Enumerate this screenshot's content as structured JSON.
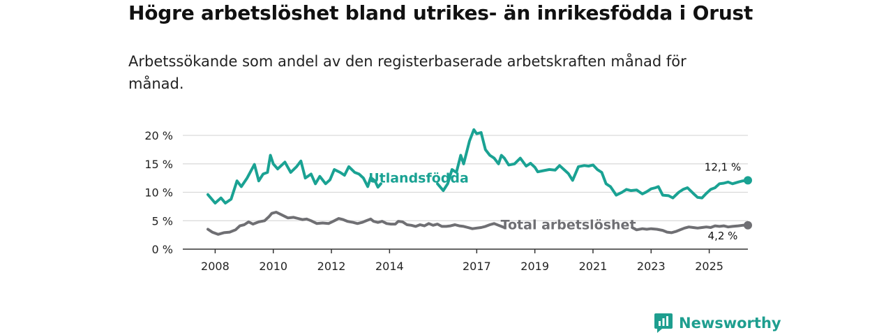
{
  "title": "Högre arbetslöshet bland utrikes- än inrikesfödda i Orust",
  "subtitle": "Arbetssökande som andel av den registerbaserade arbetskraften månad för månad.",
  "brand": "Newsworthy",
  "colors": {
    "foreign": "#1aa293",
    "total": "#6f6f73",
    "grid": "#d9d9d9",
    "axis": "#333333",
    "brand": "#1e9e8f"
  },
  "chart_data": {
    "type": "line",
    "title": "Högre arbetslöshet bland utrikes- än inrikesfödda i Orust",
    "ylabel": "",
    "xlabel": "",
    "ylim": [
      0,
      20
    ],
    "xlim": [
      2007.75,
      2026.33
    ],
    "y_ticks": [
      0,
      5,
      10,
      15,
      20
    ],
    "y_tick_labels": [
      "0 %",
      "5 %",
      "10 %",
      "15 %",
      "20 %"
    ],
    "x_ticks": [
      2008,
      2010,
      2012,
      2014,
      2017,
      2019,
      2021,
      2023,
      2025
    ],
    "x_tick_labels": [
      "2008",
      "2010",
      "2012",
      "2014",
      "2017",
      "2019",
      "2021",
      "2023",
      "2025"
    ],
    "grid": true,
    "series": [
      {
        "name": "Utlandsfödda",
        "end_label": "12,1 %",
        "points": [
          [
            2007.75,
            9.6
          ],
          [
            2008.0,
            8.1
          ],
          [
            2008.2,
            9.0
          ],
          [
            2008.35,
            8.1
          ],
          [
            2008.55,
            8.8
          ],
          [
            2008.75,
            12.0
          ],
          [
            2008.9,
            11.0
          ],
          [
            2009.1,
            12.5
          ],
          [
            2009.35,
            14.9
          ],
          [
            2009.5,
            12.0
          ],
          [
            2009.65,
            13.2
          ],
          [
            2009.8,
            13.5
          ],
          [
            2009.9,
            16.5
          ],
          [
            2010.0,
            15.0
          ],
          [
            2010.15,
            14.1
          ],
          [
            2010.4,
            15.3
          ],
          [
            2010.6,
            13.5
          ],
          [
            2010.8,
            14.5
          ],
          [
            2010.95,
            15.5
          ],
          [
            2011.1,
            12.5
          ],
          [
            2011.3,
            13.2
          ],
          [
            2011.45,
            11.5
          ],
          [
            2011.6,
            12.8
          ],
          [
            2011.8,
            11.5
          ],
          [
            2011.95,
            12.2
          ],
          [
            2012.1,
            14.0
          ],
          [
            2012.3,
            13.5
          ],
          [
            2012.45,
            13.0
          ],
          [
            2012.6,
            14.5
          ],
          [
            2012.8,
            13.5
          ],
          [
            2012.95,
            13.2
          ],
          [
            2013.1,
            12.5
          ],
          [
            2013.25,
            11.0
          ],
          [
            2013.35,
            12.6
          ],
          [
            2013.5,
            12.0
          ],
          [
            2013.6,
            10.9
          ],
          [
            2013.7,
            11.5
          ]
        ],
        "points_b": [
          [
            2015.65,
            11.5
          ],
          [
            2015.85,
            10.3
          ],
          [
            2016.0,
            11.5
          ],
          [
            2016.15,
            14.0
          ],
          [
            2016.3,
            13.5
          ],
          [
            2016.45,
            16.5
          ],
          [
            2016.55,
            15.0
          ],
          [
            2016.75,
            19.0
          ],
          [
            2016.9,
            21.0
          ],
          [
            2017.0,
            20.3
          ],
          [
            2017.15,
            20.5
          ],
          [
            2017.3,
            17.5
          ],
          [
            2017.45,
            16.5
          ],
          [
            2017.6,
            16.0
          ],
          [
            2017.75,
            15.0
          ],
          [
            2017.85,
            16.5
          ],
          [
            2017.95,
            16.0
          ],
          [
            2018.1,
            14.8
          ],
          [
            2018.3,
            15.0
          ],
          [
            2018.5,
            16.0
          ],
          [
            2018.7,
            14.6
          ],
          [
            2018.85,
            15.1
          ],
          [
            2019.0,
            14.4
          ],
          [
            2019.1,
            13.6
          ],
          [
            2019.3,
            13.8
          ],
          [
            2019.5,
            14.0
          ],
          [
            2019.7,
            13.9
          ],
          [
            2019.85,
            14.7
          ],
          [
            2020.0,
            14.0
          ],
          [
            2020.15,
            13.3
          ],
          [
            2020.3,
            12.1
          ],
          [
            2020.5,
            14.5
          ],
          [
            2020.7,
            14.7
          ],
          [
            2020.85,
            14.6
          ],
          [
            2021.0,
            14.8
          ],
          [
            2021.15,
            14.0
          ],
          [
            2021.3,
            13.5
          ],
          [
            2021.45,
            11.5
          ],
          [
            2021.6,
            11.0
          ],
          [
            2021.8,
            9.5
          ],
          [
            2022.0,
            10.0
          ],
          [
            2022.15,
            10.5
          ],
          [
            2022.3,
            10.3
          ],
          [
            2022.5,
            10.4
          ],
          [
            2022.7,
            9.7
          ],
          [
            2022.85,
            10.1
          ],
          [
            2023.0,
            10.6
          ],
          [
            2023.15,
            10.8
          ],
          [
            2023.25,
            11.0
          ],
          [
            2023.4,
            9.5
          ],
          [
            2023.6,
            9.4
          ],
          [
            2023.75,
            9.0
          ],
          [
            2023.95,
            10.0
          ],
          [
            2024.1,
            10.5
          ],
          [
            2024.25,
            10.8
          ],
          [
            2024.45,
            9.8
          ],
          [
            2024.6,
            9.1
          ],
          [
            2024.75,
            9.0
          ],
          [
            2024.9,
            9.8
          ],
          [
            2025.05,
            10.5
          ],
          [
            2025.2,
            10.8
          ],
          [
            2025.35,
            11.5
          ],
          [
            2025.5,
            11.6
          ],
          [
            2025.65,
            11.8
          ],
          [
            2025.8,
            11.5
          ],
          [
            2026.0,
            11.8
          ],
          [
            2026.15,
            12.0
          ],
          [
            2026.33,
            12.1
          ]
        ]
      },
      {
        "name": "Total arbetslöshet",
        "end_label": "4,2 %",
        "points": [
          [
            2007.75,
            3.5
          ],
          [
            2007.9,
            3.0
          ],
          [
            2008.1,
            2.6
          ],
          [
            2008.3,
            2.9
          ],
          [
            2008.5,
            3.0
          ],
          [
            2008.7,
            3.4
          ],
          [
            2008.85,
            4.1
          ],
          [
            2009.0,
            4.3
          ],
          [
            2009.15,
            4.8
          ],
          [
            2009.3,
            4.4
          ],
          [
            2009.5,
            4.8
          ],
          [
            2009.7,
            5.0
          ],
          [
            2009.85,
            5.7
          ],
          [
            2009.95,
            6.3
          ],
          [
            2010.1,
            6.5
          ],
          [
            2010.3,
            6.0
          ],
          [
            2010.5,
            5.5
          ],
          [
            2010.7,
            5.6
          ],
          [
            2010.85,
            5.4
          ],
          [
            2011.0,
            5.2
          ],
          [
            2011.15,
            5.3
          ],
          [
            2011.3,
            5.0
          ],
          [
            2011.5,
            4.5
          ],
          [
            2011.7,
            4.6
          ],
          [
            2011.9,
            4.5
          ],
          [
            2012.1,
            5.0
          ],
          [
            2012.25,
            5.4
          ],
          [
            2012.4,
            5.2
          ],
          [
            2012.55,
            4.9
          ],
          [
            2012.75,
            4.7
          ],
          [
            2012.9,
            4.5
          ],
          [
            2013.05,
            4.7
          ],
          [
            2013.2,
            5.0
          ],
          [
            2013.35,
            5.3
          ],
          [
            2013.45,
            4.9
          ],
          [
            2013.6,
            4.7
          ],
          [
            2013.75,
            4.9
          ],
          [
            2013.9,
            4.5
          ],
          [
            2014.05,
            4.4
          ],
          [
            2014.2,
            4.4
          ],
          [
            2014.3,
            4.9
          ],
          [
            2014.45,
            4.8
          ],
          [
            2014.6,
            4.3
          ],
          [
            2014.75,
            4.2
          ],
          [
            2014.9,
            4.0
          ],
          [
            2015.05,
            4.3
          ],
          [
            2015.2,
            4.1
          ],
          [
            2015.35,
            4.5
          ],
          [
            2015.5,
            4.2
          ],
          [
            2015.65,
            4.4
          ],
          [
            2015.8,
            4.0
          ],
          [
            2015.95,
            4.0
          ],
          [
            2016.1,
            4.1
          ],
          [
            2016.25,
            4.3
          ],
          [
            2016.4,
            4.1
          ],
          [
            2016.55,
            4.0
          ],
          [
            2016.7,
            3.8
          ],
          [
            2016.85,
            3.6
          ],
          [
            2017.0,
            3.7
          ],
          [
            2017.15,
            3.8
          ],
          [
            2017.3,
            4.0
          ],
          [
            2017.45,
            4.3
          ],
          [
            2017.6,
            4.5
          ],
          [
            2017.75,
            4.2
          ],
          [
            2017.85,
            4.0
          ],
          [
            2017.95,
            3.8
          ]
        ],
        "points_b": [
          [
            2022.35,
            3.8
          ],
          [
            2022.5,
            3.4
          ],
          [
            2022.7,
            3.6
          ],
          [
            2022.85,
            3.5
          ],
          [
            2023.0,
            3.6
          ],
          [
            2023.2,
            3.5
          ],
          [
            2023.4,
            3.3
          ],
          [
            2023.55,
            3.0
          ],
          [
            2023.7,
            2.9
          ],
          [
            2023.85,
            3.1
          ],
          [
            2024.0,
            3.4
          ],
          [
            2024.15,
            3.7
          ],
          [
            2024.3,
            3.9
          ],
          [
            2024.45,
            3.8
          ],
          [
            2024.6,
            3.7
          ],
          [
            2024.75,
            3.8
          ],
          [
            2024.9,
            3.9
          ],
          [
            2025.05,
            3.8
          ],
          [
            2025.2,
            4.1
          ],
          [
            2025.35,
            4.0
          ],
          [
            2025.5,
            4.1
          ],
          [
            2025.65,
            3.9
          ],
          [
            2025.8,
            4.0
          ],
          [
            2026.0,
            4.1
          ],
          [
            2026.15,
            4.2
          ],
          [
            2026.33,
            4.2
          ]
        ]
      }
    ]
  }
}
